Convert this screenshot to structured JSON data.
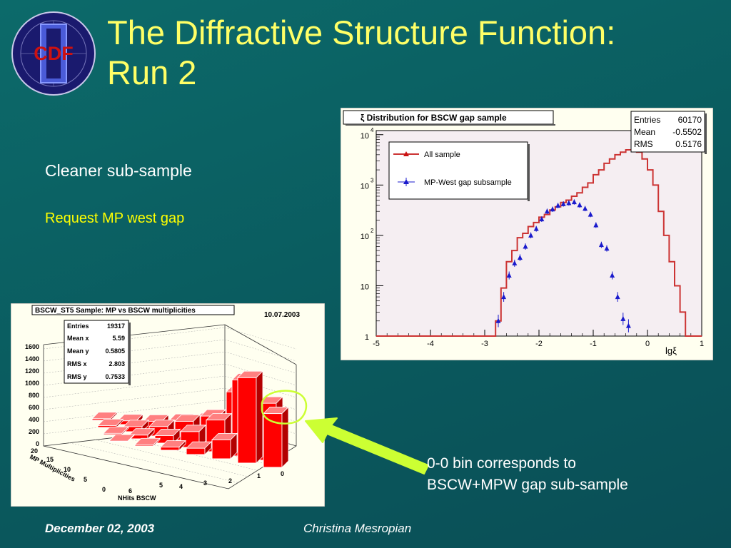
{
  "slide": {
    "title_line1": "The Diffractive Structure Function:",
    "title_line2": "Run 2",
    "subtitle": "Cleaner sub-sample",
    "request": "Request MP west gap",
    "note_line1": "0-0 bin corresponds to",
    "note_line2": "BSCW+MPW gap sub-sample",
    "footer_date": "December 02, 2003",
    "footer_author": "Christina Mesropian",
    "logo_text": "CDF",
    "colors": {
      "title": "#ffff66",
      "request": "#ffff00",
      "arrow": "#ccff33",
      "background": "#0b5f62"
    }
  },
  "plot1": {
    "title": "ξ Distribution for BSCW gap sample",
    "stats": [
      {
        "label": "Entries",
        "value": "60170"
      },
      {
        "label": "Mean",
        "value": "-0.5502"
      },
      {
        "label": "RMS",
        "value": "0.5176"
      }
    ],
    "legend": [
      {
        "label": "All sample"
      },
      {
        "label": "MP-West  gap subsample"
      }
    ],
    "y_ticks": [
      "1",
      "10",
      "10",
      "10",
      "10"
    ],
    "y_exps": [
      "",
      "",
      "2",
      "3",
      "4"
    ],
    "x_ticks": [
      "-5",
      "-4",
      "-3",
      "-2",
      "-1",
      "0",
      "1"
    ],
    "x_label": "lgξ"
  },
  "plot2": {
    "title": "BSCW_ST5 Sample: MP vs BSCW multiplicities",
    "date": "10.07.2003",
    "stats": [
      {
        "label": "Entries",
        "value": "19317"
      },
      {
        "label": "Mean x",
        "value": "5.59"
      },
      {
        "label": "Mean y",
        "value": "0.5805"
      },
      {
        "label": "RMS x",
        "value": "2.803"
      },
      {
        "label": "RMS y",
        "value": "0.7533"
      }
    ],
    "z_ticks": [
      "1600",
      "1400",
      "1200",
      "1000",
      "800",
      "600",
      "400",
      "200",
      "0"
    ],
    "y_ticks": [
      "20",
      "15",
      "10",
      "5",
      "0"
    ],
    "x_ticks": [
      "6",
      "5",
      "4",
      "3",
      "2",
      "1",
      "0"
    ],
    "x_label": "NHits BSCW",
    "y_label": "MP Multiplicities"
  },
  "chart_data": [
    {
      "type": "line",
      "title": "ξ Distribution for BSCW gap sample",
      "xlabel": "lgξ",
      "ylabel": "",
      "xlim": [
        -5,
        1
      ],
      "ylim": [
        1,
        10000
      ],
      "y_scale": "log",
      "grid": false,
      "legend_position": "top-left",
      "series": [
        {
          "name": "All sample",
          "color": "#cc3333",
          "x": [
            -4.95,
            -4.85,
            -4.75,
            -4.65,
            -4.55,
            -4.45,
            -4.35,
            -4.25,
            -4.15,
            -4.05,
            -3.95,
            -3.85,
            -3.75,
            -3.65,
            -3.55,
            -3.45,
            -3.35,
            -3.25,
            -3.15,
            -3.05,
            -2.95,
            -2.85,
            -2.75,
            -2.65,
            -2.55,
            -2.45,
            -2.35,
            -2.25,
            -2.15,
            -2.05,
            -1.95,
            -1.85,
            -1.75,
            -1.65,
            -1.55,
            -1.45,
            -1.35,
            -1.25,
            -1.15,
            -1.05,
            -0.95,
            -0.85,
            -0.75,
            -0.65,
            -0.55,
            -0.45,
            -0.35,
            -0.25,
            -0.15,
            -0.05,
            0.05,
            0.15,
            0.25,
            0.35,
            0.45,
            0.55,
            0.65,
            0.75,
            0.85,
            0.95
          ],
          "y": [
            1,
            1,
            1,
            1,
            1,
            1,
            1,
            1,
            1,
            1,
            1,
            1,
            1,
            1,
            1,
            1,
            1,
            1,
            1,
            1,
            1,
            1,
            2,
            9,
            30,
            50,
            90,
            110,
            150,
            180,
            230,
            260,
            320,
            370,
            450,
            500,
            600,
            700,
            900,
            1100,
            1600,
            2000,
            2700,
            3300,
            4000,
            4500,
            5000,
            5000,
            4500,
            3300,
            2000,
            1000,
            300,
            100,
            30,
            10,
            3,
            1,
            1,
            1
          ]
        },
        {
          "name": "MP-West  gap subsample",
          "color": "#1a1acc",
          "x": [
            -2.75,
            -2.65,
            -2.55,
            -2.45,
            -2.35,
            -2.25,
            -2.15,
            -2.05,
            -1.95,
            -1.85,
            -1.75,
            -1.65,
            -1.55,
            -1.45,
            -1.35,
            -1.25,
            -1.15,
            -1.05,
            -0.95,
            -0.85,
            -0.75,
            -0.65,
            -0.55,
            -0.45,
            -0.35
          ],
          "y": [
            2,
            6,
            16,
            28,
            36,
            60,
            100,
            135,
            210,
            300,
            330,
            390,
            420,
            440,
            460,
            400,
            340,
            260,
            160,
            65,
            55,
            16,
            6,
            2.2,
            1.6
          ]
        }
      ]
    },
    {
      "type": "bar",
      "title": "BSCW_ST5 Sample: MP vs BSCW multiplicities",
      "xlabel": "NHits BSCW",
      "ylabel": "MP Multiplicities",
      "zlim": [
        0,
        1600
      ],
      "categories": [
        "0",
        "1",
        "2",
        "3",
        "4",
        "5",
        "6"
      ],
      "series": [
        {
          "values": [
            850,
            1350,
            300,
            100,
            50,
            20,
            10
          ]
        },
        {
          "values": [
            900,
            1200,
            500,
            250,
            120,
            60,
            20
          ]
        },
        {
          "values": [
            400,
            900,
            450,
            300,
            150,
            80,
            30
          ]
        },
        {
          "values": [
            150,
            350,
            280,
            200,
            120,
            60,
            25
          ]
        }
      ]
    }
  ]
}
